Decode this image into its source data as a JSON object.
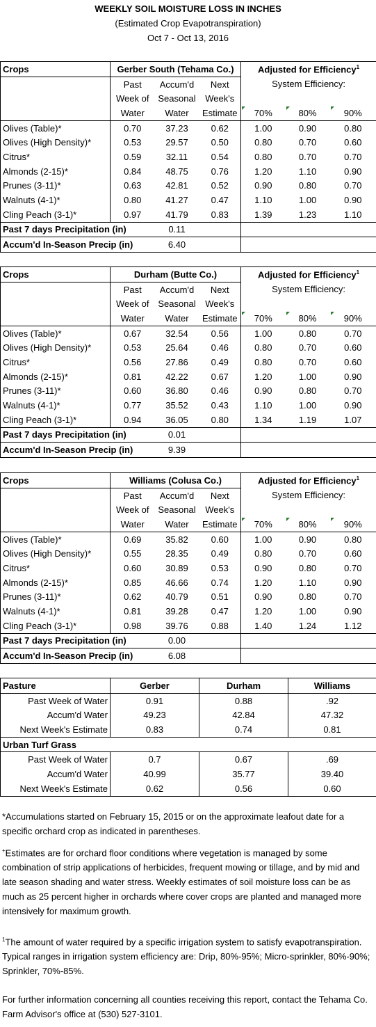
{
  "title": "WEEKLY SOIL MOISTURE LOSS IN INCHES",
  "subtitle": "(Estimated Crop Evapotranspiration)",
  "dates": "Oct 7 - Oct 13, 2016",
  "labels": {
    "crops": "Crops",
    "adjusted": "Adjusted for Efficiency",
    "adjusted_sup": "1",
    "system_eff": "System Efficiency:",
    "h_past": [
      "Past",
      "Week of",
      "Water"
    ],
    "h_accum": [
      "Accum'd",
      "Seasonal",
      "Water"
    ],
    "h_next": [
      "Next",
      "Week's",
      "Estimate"
    ],
    "eff": [
      "70%",
      "80%",
      "90%"
    ],
    "precip7": "Past 7 days Precipitation (in)",
    "precipSeason": "Accum'd In-Season Precip (in)"
  },
  "stations": [
    {
      "name": "Gerber South (Tehama Co.)",
      "rows": [
        {
          "crop": "Olives (Table)*",
          "past": "0.70",
          "accum": "37.23",
          "next": "0.62",
          "e70": "1.00",
          "e80": "0.90",
          "e90": "0.80"
        },
        {
          "crop": "Olives (High Density)*",
          "past": "0.53",
          "accum": "29.57",
          "next": "0.50",
          "e70": "0.80",
          "e80": "0.70",
          "e90": "0.60"
        },
        {
          "crop": "Citrus*",
          "past": "0.59",
          "accum": "32.11",
          "next": "0.54",
          "e70": "0.80",
          "e80": "0.70",
          "e90": "0.70"
        },
        {
          "crop": "Almonds (2-15)*",
          "past": "0.84",
          "accum": "48.75",
          "next": "0.76",
          "e70": "1.20",
          "e80": "1.10",
          "e90": "0.90"
        },
        {
          "crop": "Prunes (3-11)*",
          "past": "0.63",
          "accum": "42.81",
          "next": "0.52",
          "e70": "0.90",
          "e80": "0.80",
          "e90": "0.70"
        },
        {
          "crop": "Walnuts (4-1)*",
          "past": "0.80",
          "accum": "41.27",
          "next": "0.47",
          "e70": "1.10",
          "e80": "1.00",
          "e90": "0.90"
        },
        {
          "crop": "Cling Peach (3-1)*",
          "past": "0.97",
          "accum": "41.79",
          "next": "0.83",
          "e70": "1.39",
          "e80": "1.23",
          "e90": "1.10"
        }
      ],
      "precip7": "0.11",
      "precipSeason": "6.40"
    },
    {
      "name": "Durham (Butte Co.)",
      "rows": [
        {
          "crop": "Olives (Table)*",
          "past": "0.67",
          "accum": "32.54",
          "next": "0.56",
          "e70": "1.00",
          "e80": "0.80",
          "e90": "0.70"
        },
        {
          "crop": "Olives (High Density)*",
          "past": "0.53",
          "accum": "25.64",
          "next": "0.46",
          "e70": "0.80",
          "e80": "0.70",
          "e90": "0.60"
        },
        {
          "crop": "Citrus*",
          "past": "0.56",
          "accum": "27.86",
          "next": "0.49",
          "e70": "0.80",
          "e80": "0.70",
          "e90": "0.60"
        },
        {
          "crop": "Almonds (2-15)*",
          "past": "0.81",
          "accum": "42.22",
          "next": "0.67",
          "e70": "1.20",
          "e80": "1.00",
          "e90": "0.90"
        },
        {
          "crop": "Prunes (3-11)*",
          "past": "0.60",
          "accum": "36.80",
          "next": "0.46",
          "e70": "0.90",
          "e80": "0.80",
          "e90": "0.70"
        },
        {
          "crop": "Walnuts (4-1)*",
          "past": "0.77",
          "accum": "35.52",
          "next": "0.43",
          "e70": "1.10",
          "e80": "1.00",
          "e90": "0.90"
        },
        {
          "crop": "Cling Peach (3-1)*",
          "past": "0.94",
          "accum": "36.05",
          "next": "0.80",
          "e70": "1.34",
          "e80": "1.19",
          "e90": "1.07"
        }
      ],
      "precip7": "0.01",
      "precipSeason": "9.39"
    },
    {
      "name": "Williams (Colusa Co.)",
      "rows": [
        {
          "crop": "Olives (Table)*",
          "past": "0.69",
          "accum": "35.82",
          "next": "0.60",
          "e70": "1.00",
          "e80": "0.90",
          "e90": "0.80"
        },
        {
          "crop": "Olives (High Density)*",
          "past": "0.55",
          "accum": "28.35",
          "next": "0.49",
          "e70": "0.80",
          "e80": "0.70",
          "e90": "0.60"
        },
        {
          "crop": "Citrus*",
          "past": "0.60",
          "accum": "30.89",
          "next": "0.53",
          "e70": "0.90",
          "e80": "0.80",
          "e90": "0.70"
        },
        {
          "crop": "Almonds (2-15)*",
          "past": "0.85",
          "accum": "46.66",
          "next": "0.74",
          "e70": "1.20",
          "e80": "1.10",
          "e90": "0.90"
        },
        {
          "crop": "Prunes (3-11)*",
          "past": "0.62",
          "accum": "40.79",
          "next": "0.51",
          "e70": "0.90",
          "e80": "0.80",
          "e90": "0.70"
        },
        {
          "crop": "Walnuts (4-1)*",
          "past": "0.81",
          "accum": "39.28",
          "next": "0.47",
          "e70": "1.20",
          "e80": "1.00",
          "e90": "0.90"
        },
        {
          "crop": "Cling Peach (3-1)*",
          "past": "0.98",
          "accum": "39.76",
          "next": "0.88",
          "e70": "1.40",
          "e80": "1.24",
          "e90": "1.12"
        }
      ],
      "precip7": "0.00",
      "precipSeason": "6.08"
    }
  ],
  "pasture": {
    "heading": "Pasture",
    "cols": [
      "Gerber",
      "Durham",
      "Williams"
    ],
    "rowLabels": [
      "Past Week of Water",
      "Accum'd Water",
      "Next Week's Estimate"
    ],
    "pasture": [
      [
        "0.91",
        "0.88",
        ".92"
      ],
      [
        "49.23",
        "42.84",
        "47.32"
      ],
      [
        "0.83",
        "0.74",
        "0.81"
      ]
    ],
    "turfHeading": "Urban Turf Grass",
    "turf": [
      [
        "0.7",
        "0.67",
        ".69"
      ],
      [
        "40.99",
        "35.77",
        "39.40"
      ],
      [
        "0.62",
        "0.56",
        "0.60"
      ]
    ]
  },
  "notes": {
    "n1": "*Accumulations started on February 15, 2015 or on the approximate leafout date for a specific orchard crop as indicated in parentheses.",
    "n2_mark": "+",
    "n2": "Estimates are for orchard floor conditions where vegetation is managed by some combination of strip applications of herbicides, frequent mowing or tillage, and by mid and late season shading and water stress.  Weekly estimates of soil moisture loss can be as much as 25 percent higher in orchards where cover crops are planted and managed more intensively for maximum growth.",
    "n3_mark": "1",
    "n3": "The amount of water required by a specific irrigation system to satisfy evapotranspiration. Typical ranges in irrigation system efficiency are: Drip, 80%-95%; Micro-sprinkler, 80%-90%; Sprinkler, 70%-85%.",
    "n4": "For further information concerning all counties receiving this report, contact the Tehama Co. Farm Advisor's office at (530) 527-3101."
  }
}
